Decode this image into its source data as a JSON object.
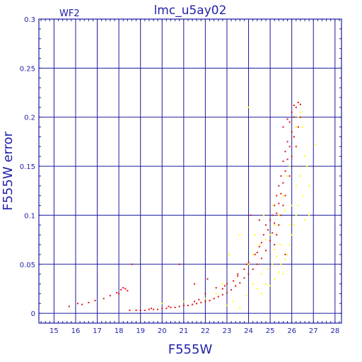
{
  "chart_data": {
    "type": "scatter",
    "title": "lmc_u5ay02",
    "chip_label": "WF2",
    "xlabel": "F555W",
    "ylabel": "F555W error",
    "xlim": [
      14.3,
      28.3
    ],
    "ylim": [
      -0.01,
      0.3
    ],
    "x_ticks": [
      15,
      16,
      17,
      18,
      19,
      20,
      21,
      22,
      23,
      24,
      25,
      26,
      27,
      28
    ],
    "x_tick_labels": [
      "15",
      "16",
      "17",
      "18",
      "19",
      "20",
      "21",
      "22",
      "23",
      "24",
      "25",
      "26",
      "27",
      "28"
    ],
    "y_ticks": [
      0,
      0.05,
      0.1,
      0.15,
      0.2,
      0.25,
      0.3
    ],
    "y_tick_labels": [
      "0",
      "0.05",
      "0.1",
      "0.15",
      "0.2",
      "0.25",
      "0.3"
    ],
    "grid": true,
    "colors": {
      "axes": "#1a1aa0",
      "text": "#2222aa",
      "series_1": "#e01010",
      "series_2": "#ffff00"
    },
    "series": [
      {
        "color": "#e01010",
        "points": [
          [
            15.7,
            0.007
          ],
          [
            16.1,
            0.01
          ],
          [
            16.3,
            0.009
          ],
          [
            16.6,
            0.011
          ],
          [
            16.9,
            0.013
          ],
          [
            17.3,
            0.015
          ],
          [
            17.6,
            0.018
          ],
          [
            17.9,
            0.021
          ],
          [
            18.1,
            0.024
          ],
          [
            18.2,
            0.026
          ],
          [
            18.3,
            0.025
          ],
          [
            18.4,
            0.023
          ],
          [
            18.0,
            0.02
          ],
          [
            18.6,
            0.05
          ],
          [
            18.5,
            0.003
          ],
          [
            18.8,
            0.003
          ],
          [
            19.0,
            0.003
          ],
          [
            19.2,
            0.003
          ],
          [
            19.4,
            0.004
          ],
          [
            19.6,
            0.004
          ],
          [
            19.8,
            0.004
          ],
          [
            20.0,
            0.005
          ],
          [
            20.2,
            0.005
          ],
          [
            20.4,
            0.006
          ],
          [
            20.6,
            0.006
          ],
          [
            20.8,
            0.007
          ],
          [
            21.0,
            0.008
          ],
          [
            21.2,
            0.008
          ],
          [
            21.4,
            0.009
          ],
          [
            21.6,
            0.01
          ],
          [
            21.8,
            0.011
          ],
          [
            22.0,
            0.012
          ],
          [
            22.2,
            0.013
          ],
          [
            22.4,
            0.015
          ],
          [
            22.6,
            0.017
          ],
          [
            22.8,
            0.019
          ],
          [
            23.0,
            0.021
          ],
          [
            23.2,
            0.024
          ],
          [
            23.4,
            0.028
          ],
          [
            23.6,
            0.031
          ],
          [
            23.8,
            0.036
          ],
          [
            24.0,
            0.04
          ],
          [
            24.2,
            0.045
          ],
          [
            24.4,
            0.05
          ],
          [
            24.6,
            0.056
          ],
          [
            24.8,
            0.064
          ],
          [
            25.0,
            0.074
          ],
          [
            25.1,
            0.082
          ],
          [
            25.2,
            0.092
          ],
          [
            25.3,
            0.102
          ],
          [
            25.4,
            0.112
          ],
          [
            25.5,
            0.122
          ],
          [
            25.6,
            0.133
          ],
          [
            25.7,
            0.145
          ],
          [
            25.8,
            0.157
          ],
          [
            25.9,
            0.17
          ],
          [
            26.0,
            0.185
          ],
          [
            26.1,
            0.2
          ],
          [
            26.2,
            0.21
          ],
          [
            26.3,
            0.215
          ],
          [
            26.4,
            0.213
          ],
          [
            22.0,
            0.02
          ],
          [
            22.5,
            0.026
          ],
          [
            23.0,
            0.03
          ],
          [
            23.5,
            0.038
          ],
          [
            24.0,
            0.052
          ],
          [
            24.3,
            0.06
          ],
          [
            24.6,
            0.072
          ],
          [
            24.9,
            0.085
          ],
          [
            25.2,
            0.11
          ],
          [
            25.5,
            0.14
          ],
          [
            25.8,
            0.175
          ],
          [
            25.9,
            0.195
          ],
          [
            26.0,
            0.205
          ],
          [
            25.7,
            0.165
          ],
          [
            25.6,
            0.155
          ],
          [
            25.4,
            0.13
          ],
          [
            25.3,
            0.12
          ],
          [
            25.1,
            0.1
          ],
          [
            24.7,
            0.08
          ],
          [
            24.5,
            0.068
          ],
          [
            23.8,
            0.045
          ],
          [
            23.3,
            0.033
          ],
          [
            22.8,
            0.025
          ],
          [
            21.5,
            0.012
          ],
          [
            20.8,
            0.05
          ],
          [
            21.5,
            0.03
          ],
          [
            22.1,
            0.035
          ],
          [
            23.5,
            0.04
          ],
          [
            24.1,
            0.1
          ],
          [
            24.5,
            0.095
          ],
          [
            25.7,
            0.06
          ],
          [
            25.8,
            0.198
          ],
          [
            25.6,
            0.19
          ],
          [
            26.1,
            0.18
          ],
          [
            26.0,
            0.16
          ],
          [
            25.9,
            0.14
          ],
          [
            25.7,
            0.12
          ],
          [
            25.6,
            0.11
          ],
          [
            25.5,
            0.1
          ],
          [
            25.4,
            0.09
          ],
          [
            25.3,
            0.08
          ],
          [
            25.2,
            0.07
          ],
          [
            26.3,
            0.19
          ],
          [
            26.4,
            0.2
          ],
          [
            26.2,
            0.17
          ],
          [
            19.5,
            0.005
          ],
          [
            20.3,
            0.007
          ],
          [
            21.7,
            0.014
          ],
          [
            22.9,
            0.028
          ],
          [
            23.9,
            0.05
          ],
          [
            24.4,
            0.062
          ],
          [
            24.8,
            0.09
          ],
          [
            25.0,
            0.095
          ],
          [
            26.1,
            0.212
          ]
        ]
      },
      {
        "color": "#ffff00",
        "points": [
          [
            20.0,
            0.01
          ],
          [
            21.0,
            0.012
          ],
          [
            22.0,
            0.015
          ],
          [
            22.5,
            0.02
          ],
          [
            23.0,
            0.008
          ],
          [
            23.3,
            0.012
          ],
          [
            23.6,
            0.006
          ],
          [
            23.9,
            0.018
          ],
          [
            24.2,
            0.03
          ],
          [
            24.4,
            0.025
          ],
          [
            24.6,
            0.02
          ],
          [
            24.8,
            0.03
          ],
          [
            25.0,
            0.028
          ],
          [
            25.2,
            0.035
          ],
          [
            25.4,
            0.042
          ],
          [
            25.5,
            0.05
          ],
          [
            25.6,
            0.04
          ],
          [
            25.7,
            0.055
          ],
          [
            25.8,
            0.06
          ],
          [
            25.9,
            0.07
          ],
          [
            26.0,
            0.08
          ],
          [
            26.1,
            0.09
          ],
          [
            26.2,
            0.1
          ],
          [
            26.3,
            0.11
          ],
          [
            25.5,
            0.07
          ],
          [
            25.3,
            0.058
          ],
          [
            25.1,
            0.05
          ],
          [
            24.9,
            0.045
          ],
          [
            25.9,
            0.15
          ],
          [
            26.0,
            0.16
          ],
          [
            26.1,
            0.18
          ],
          [
            26.2,
            0.19
          ],
          [
            26.3,
            0.2
          ],
          [
            26.4,
            0.205
          ],
          [
            26.5,
            0.19
          ],
          [
            26.6,
            0.16
          ],
          [
            26.7,
            0.15
          ],
          [
            27.1,
            0.172
          ],
          [
            26.8,
            0.13
          ],
          [
            26.5,
            0.12
          ],
          [
            25.8,
            0.14
          ],
          [
            25.6,
            0.12
          ],
          [
            25.4,
            0.1
          ],
          [
            25.2,
            0.09
          ],
          [
            25.0,
            0.08
          ],
          [
            24.8,
            0.075
          ],
          [
            24.5,
            0.07
          ],
          [
            24.2,
            0.06
          ],
          [
            24.0,
            0.05
          ],
          [
            24.0,
            0.21
          ],
          [
            23.1,
            0.06
          ],
          [
            22.8,
            0.03
          ],
          [
            23.6,
            0.08
          ],
          [
            24.3,
            0.08
          ],
          [
            25.4,
            0.09
          ],
          [
            26.0,
            0.11
          ],
          [
            26.6,
            0.095
          ],
          [
            26.8,
            0.1
          ],
          [
            26.4,
            0.14
          ],
          [
            25.2,
            0.065
          ],
          [
            24.6,
            0.04
          ],
          [
            25.9,
            0.09
          ],
          [
            26.2,
            0.13
          ],
          [
            25.7,
            0.105
          ],
          [
            25.1,
            0.11
          ],
          [
            24.7,
            0.1
          ]
        ]
      }
    ]
  }
}
